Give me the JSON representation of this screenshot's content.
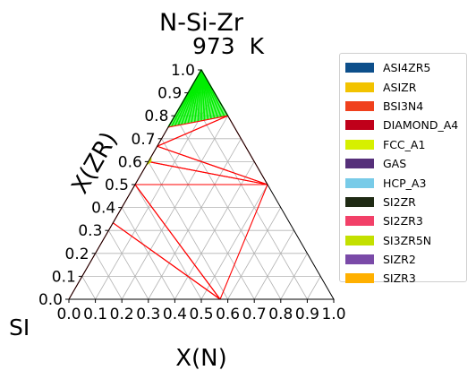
{
  "chart_data": {
    "type": "ternary-phase-diagram",
    "title": "N-Si-Zr",
    "subtitle": "973  K",
    "xlabel": "X(N)",
    "ylabel": "X(ZR)",
    "corner_label": "SI",
    "xlim": [
      0,
      1
    ],
    "ylim": [
      0,
      1
    ],
    "x_ticks": [
      "0.0",
      "0.1",
      "0.2",
      "0.3",
      "0.4",
      "0.5",
      "0.6",
      "0.7",
      "0.8",
      "0.9",
      "1.0"
    ],
    "y_ticks": [
      "0.0",
      "0.1",
      "0.2",
      "0.3",
      "0.4",
      "0.5",
      "0.6",
      "0.7",
      "0.8",
      "0.9",
      "1.0"
    ],
    "grid": true,
    "legend_position": "right",
    "legend": [
      {
        "label": "ASI4ZR5",
        "color": "#0d4f8b"
      },
      {
        "label": "ASIZR",
        "color": "#f2c300"
      },
      {
        "label": "BSI3N4",
        "color": "#f0401c"
      },
      {
        "label": "DIAMOND_A4",
        "color": "#c0001a"
      },
      {
        "label": "FCC_A1",
        "color": "#d6f000"
      },
      {
        "label": "GAS",
        "color": "#56307a"
      },
      {
        "label": "HCP_A3",
        "color": "#78cbe8"
      },
      {
        "label": "SI2ZR",
        "color": "#1f2a14"
      },
      {
        "label": "SI2ZR3",
        "color": "#f24068"
      },
      {
        "label": "SI3ZR5N",
        "color": "#c3e000"
      },
      {
        "label": "SIZR2",
        "color": "#7a4aa8"
      },
      {
        "label": "SIZR3",
        "color": "#ffb000"
      }
    ],
    "tie_line_color": "#ff0000",
    "tie_triangles": [
      [
        [
          0,
          0
        ],
        [
          0,
          0.333
        ],
        [
          0.571,
          0
        ]
      ],
      [
        [
          0,
          0.333
        ],
        [
          0,
          0.5
        ],
        [
          0.571,
          0
        ]
      ],
      [
        [
          0,
          0.5
        ],
        [
          0.571,
          0
        ],
        [
          0.5,
          0.5
        ]
      ],
      [
        [
          0,
          0.5
        ],
        [
          0,
          0.6
        ],
        [
          0.5,
          0.5
        ]
      ],
      [
        [
          0,
          0.6
        ],
        [
          0,
          0.667
        ],
        [
          0.5,
          0.5
        ]
      ],
      [
        [
          0,
          0.667
        ],
        [
          0.5,
          0.5
        ],
        [
          0.2,
          0.8
        ]
      ],
      [
        [
          0,
          0.667
        ],
        [
          0,
          0.75
        ],
        [
          0.2,
          0.8
        ]
      ]
    ],
    "two_phase_fan": {
      "color": "#00ee00",
      "apex": [
        0,
        1
      ],
      "from": [
        0,
        0.75
      ],
      "to": [
        0.2,
        0.8
      ],
      "lines": 18
    },
    "small_region": {
      "color": "#d6f000",
      "points": [
        [
          0,
          0.585
        ],
        [
          0.01,
          0.6
        ],
        [
          0,
          0.62
        ]
      ]
    }
  }
}
